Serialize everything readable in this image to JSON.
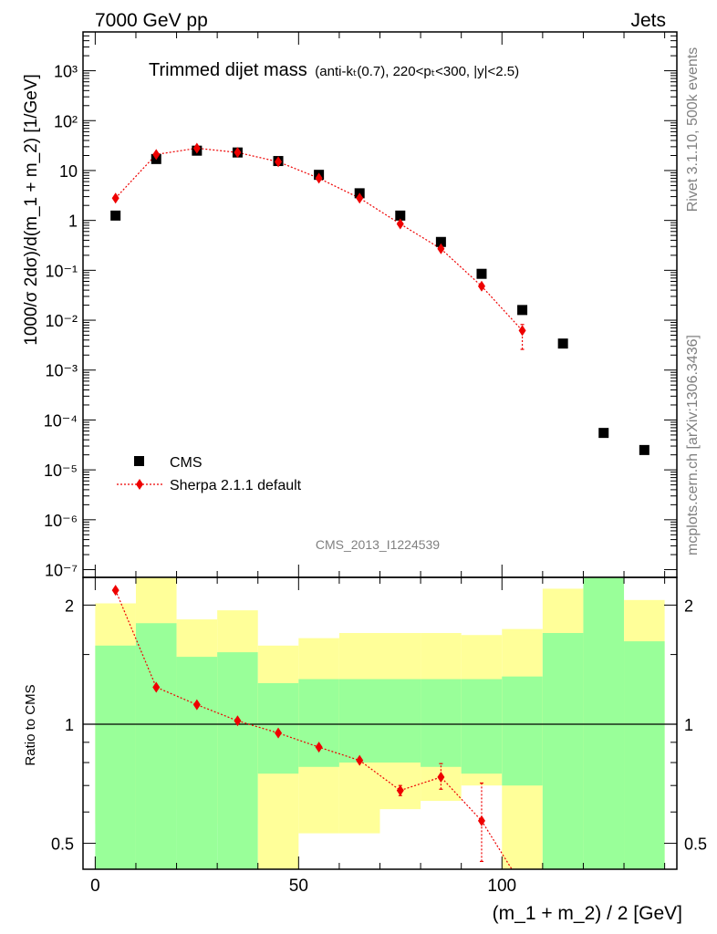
{
  "header": {
    "left": "7000 GeV pp",
    "right": "Jets"
  },
  "side_labels": {
    "rivet": "Rivet 3.1.10,  500k events",
    "mcplots": "mcplots.cern.ch [arXiv:1306.3436]"
  },
  "watermark": "CMS_2013_I1224539",
  "colors": {
    "data": "#000000",
    "mc": "#ee0000",
    "band_inner": "#99ff99",
    "band_outer": "#ffff99"
  },
  "chart_data": [
    {
      "type": "scatter",
      "panel": "main",
      "title_main": "Trimmed dijet mass",
      "title_sub": "(anti-kₜ(0.7), 220<pₜ<300, |y|<2.5)",
      "ylabel": "1000/σ 2dσ)/d(m_1 + m_2) [1/GeV]",
      "yscale": "log",
      "ylim": [
        7e-08,
        6000
      ],
      "xlim": [
        -3,
        143
      ],
      "ytick_labels": [
        "10⁻⁷",
        "10⁻⁶",
        "10⁻⁵",
        "10⁻⁴",
        "10⁻³",
        "10⁻²",
        "10⁻¹",
        "1",
        "10",
        "10²",
        "10³"
      ],
      "ytick_values": [
        1e-07,
        1e-06,
        1e-05,
        0.0001,
        0.001,
        0.01,
        0.1,
        1,
        10,
        100,
        1000
      ],
      "legend": {
        "position": "bottom-left",
        "entries": [
          "CMS",
          "Sherpa 2.1.1 default"
        ]
      },
      "series": [
        {
          "name": "CMS",
          "x": [
            5,
            15,
            25,
            35,
            45,
            55,
            65,
            75,
            85,
            95,
            105,
            115,
            125,
            135
          ],
          "y": [
            1.25,
            17,
            25,
            23,
            15.5,
            8.2,
            3.5,
            1.25,
            0.37,
            0.085,
            0.016,
            0.0034,
            5.5e-05,
            2.5e-05
          ]
        },
        {
          "name": "Sherpa 2.1.1 default",
          "x": [
            5,
            15,
            25,
            35,
            45,
            55,
            65,
            75,
            85,
            95,
            105
          ],
          "y": [
            2.8,
            21,
            28,
            23,
            15,
            7,
            2.8,
            0.85,
            0.27,
            0.048,
            0.0062
          ],
          "yerr_low": [
            0,
            0,
            0,
            0,
            0,
            0,
            0,
            0,
            0,
            0,
            0.0036
          ],
          "yerr_high": [
            0,
            0,
            0,
            0,
            0,
            0,
            0,
            0,
            0,
            0,
            0.002
          ]
        }
      ]
    },
    {
      "type": "line",
      "panel": "ratio",
      "ylabel": "Ratio to CMS",
      "xlabel": "(m_1 + m_2) / 2 [GeV]",
      "yscale": "log",
      "ylim": [
        0.43,
        2.35
      ],
      "xlim": [
        -3,
        143
      ],
      "xtick_values": [
        0,
        50,
        100
      ],
      "xtick_labels": [
        "0",
        "50",
        "100"
      ],
      "ytick_values": [
        0.5,
        1,
        2
      ],
      "ytick_labels": [
        "0.5",
        "1",
        "2"
      ],
      "reference_line": 1,
      "bins": [
        0,
        10,
        20,
        30,
        40,
        50,
        60,
        70,
        80,
        90,
        100,
        110,
        120,
        130,
        140
      ],
      "band_inner": {
        "lo": [
          0.43,
          0.43,
          0.43,
          0.43,
          0.75,
          0.78,
          0.8,
          0.8,
          0.78,
          0.75,
          0.7,
          0.43,
          0.43,
          0.43
        ],
        "hi": [
          1.58,
          1.8,
          1.48,
          1.52,
          1.27,
          1.3,
          1.3,
          1.3,
          1.3,
          1.3,
          1.32,
          1.7,
          2.35,
          1.62
        ]
      },
      "band_outer": {
        "lo": [
          0.56,
          0.43,
          0.61,
          0.56,
          0.43,
          0.53,
          0.53,
          0.61,
          0.64,
          0.7,
          0.43,
          0.51,
          0.43,
          0.43
        ],
        "hi": [
          2.02,
          2.35,
          1.84,
          1.94,
          1.58,
          1.65,
          1.7,
          1.7,
          1.7,
          1.68,
          1.74,
          2.2,
          2.35,
          2.06
        ]
      },
      "series": [
        {
          "name": "Sherpa 2.1.1 default",
          "x": [
            5,
            15,
            25,
            35,
            45,
            55,
            65,
            75,
            85,
            95,
            105
          ],
          "y": [
            2.18,
            1.24,
            1.12,
            1.02,
            0.95,
            0.875,
            0.81,
            0.68,
            0.735,
            0.57,
            0.39
          ],
          "yerr_low": [
            0,
            0,
            0,
            0,
            0,
            0,
            0,
            0.02,
            0.05,
            0.12,
            0
          ],
          "yerr_high": [
            0,
            0,
            0,
            0,
            0,
            0,
            0,
            0.02,
            0.06,
            0.14,
            0
          ]
        }
      ]
    }
  ]
}
